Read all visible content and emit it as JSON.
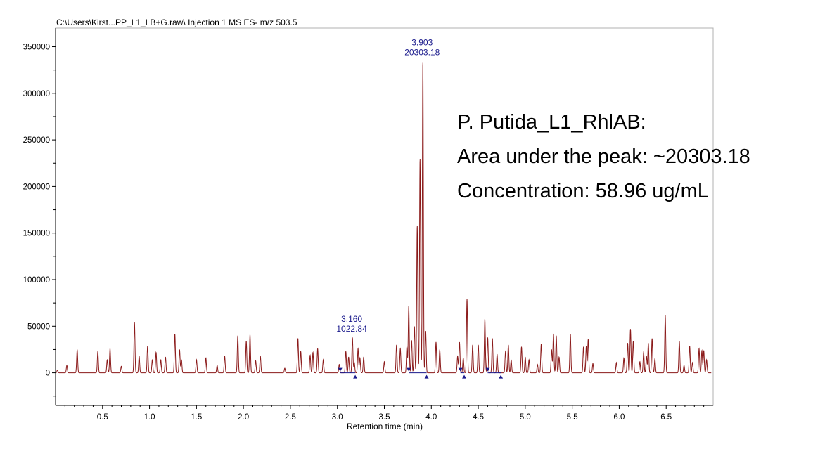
{
  "file_title": "C:\\Users\\Kirst...PP_L1_LB+G.raw\\ Injection 1 MS ES-  m/z 503.5",
  "annotation": {
    "line1": "P. Putida_L1_RhlAB:",
    "line2": "Area under the peak: ~20303.18",
    "line3": "Concentration: 58.96 ug/mL"
  },
  "colors": {
    "trace": "#8b1a1a",
    "peak_label": "#1a1a8c",
    "markers": "#1a1a8c",
    "axis": "#000000"
  },
  "chart_data": {
    "type": "line",
    "title": "",
    "xlabel": "Retention time (min)",
    "ylabel": "",
    "xlim": [
      0.0,
      7.0
    ],
    "ylim": [
      -35000,
      370000
    ],
    "x_ticks": [
      {
        "v": 0.5,
        "label": "0.5"
      },
      {
        "v": 1.0,
        "label": "1.0"
      },
      {
        "v": 1.5,
        "label": "1.5"
      },
      {
        "v": 2.0,
        "label": "2.0"
      },
      {
        "v": 2.5,
        "label": "2.5"
      },
      {
        "v": 3.0,
        "label": "3.0"
      },
      {
        "v": 3.5,
        "label": "3.5"
      },
      {
        "v": 4.0,
        "label": "4.0"
      },
      {
        "v": 4.5,
        "label": "4.5"
      },
      {
        "v": 5.0,
        "label": "5.0"
      },
      {
        "v": 5.5,
        "label": "5.5"
      },
      {
        "v": 6.0,
        "label": "6.0"
      },
      {
        "v": 6.5,
        "label": "6.5"
      }
    ],
    "y_ticks": [
      {
        "v": 0,
        "label": "0"
      },
      {
        "v": 50000,
        "label": "50000"
      },
      {
        "v": 100000,
        "label": "100000"
      },
      {
        "v": 150000,
        "label": "150000"
      },
      {
        "v": 200000,
        "label": "200000"
      },
      {
        "v": 250000,
        "label": "250000"
      },
      {
        "v": 300000,
        "label": "300000"
      },
      {
        "v": 350000,
        "label": "350000"
      }
    ],
    "baseline": 0,
    "peaks": [
      [
        0.02,
        3000
      ],
      [
        0.12,
        8000
      ],
      [
        0.23,
        25000
      ],
      [
        0.45,
        23000
      ],
      [
        0.55,
        14000
      ],
      [
        0.58,
        26000
      ],
      [
        0.7,
        7000
      ],
      [
        0.84,
        54000
      ],
      [
        0.89,
        18000
      ],
      [
        0.98,
        29000
      ],
      [
        1.03,
        14000
      ],
      [
        1.07,
        22000
      ],
      [
        1.12,
        14000
      ],
      [
        1.17,
        17000
      ],
      [
        1.27,
        42000
      ],
      [
        1.32,
        25000
      ],
      [
        1.34,
        14000
      ],
      [
        1.5,
        14000
      ],
      [
        1.6,
        16000
      ],
      [
        1.72,
        8000
      ],
      [
        1.8,
        18000
      ],
      [
        1.94,
        40000
      ],
      [
        2.03,
        34000
      ],
      [
        2.07,
        41000
      ],
      [
        2.13,
        13000
      ],
      [
        2.18,
        18000
      ],
      [
        2.44,
        5000
      ],
      [
        2.58,
        37000
      ],
      [
        2.61,
        23000
      ],
      [
        2.71,
        19000
      ],
      [
        2.74,
        22000
      ],
      [
        2.79,
        26000
      ],
      [
        2.85,
        14000
      ],
      [
        3.02,
        9000
      ],
      [
        3.09,
        23000
      ],
      [
        3.12,
        17000
      ],
      [
        3.16,
        38000
      ],
      [
        3.18,
        11000
      ],
      [
        3.22,
        26000
      ],
      [
        3.24,
        16000
      ],
      [
        3.28,
        17000
      ],
      [
        3.5,
        12000
      ],
      [
        3.63,
        30000
      ],
      [
        3.67,
        26000
      ],
      [
        3.74,
        28000
      ],
      [
        3.76,
        72000
      ],
      [
        3.79,
        35000
      ],
      [
        3.82,
        50000
      ],
      [
        3.85,
        158000
      ],
      [
        3.88,
        230000
      ],
      [
        3.91,
        335000
      ],
      [
        3.94,
        45000
      ],
      [
        4.05,
        33000
      ],
      [
        4.09,
        25000
      ],
      [
        4.28,
        18000
      ],
      [
        4.3,
        33000
      ],
      [
        4.34,
        16000
      ],
      [
        4.38,
        79000
      ],
      [
        4.44,
        30000
      ],
      [
        4.5,
        30000
      ],
      [
        4.57,
        58000
      ],
      [
        4.6,
        38000
      ],
      [
        4.65,
        37000
      ],
      [
        4.7,
        20000
      ],
      [
        4.79,
        23000
      ],
      [
        4.82,
        30000
      ],
      [
        4.85,
        14000
      ],
      [
        4.96,
        28000
      ],
      [
        5.0,
        17000
      ],
      [
        5.04,
        14000
      ],
      [
        5.13,
        9000
      ],
      [
        5.17,
        31000
      ],
      [
        5.28,
        25000
      ],
      [
        5.3,
        42000
      ],
      [
        5.33,
        40000
      ],
      [
        5.36,
        17000
      ],
      [
        5.48,
        42000
      ],
      [
        5.62,
        28000
      ],
      [
        5.65,
        29000
      ],
      [
        5.67,
        36000
      ],
      [
        5.72,
        10000
      ],
      [
        5.97,
        11000
      ],
      [
        6.05,
        16000
      ],
      [
        6.09,
        32000
      ],
      [
        6.12,
        47000
      ],
      [
        6.15,
        34000
      ],
      [
        6.22,
        12000
      ],
      [
        6.26,
        22000
      ],
      [
        6.29,
        18000
      ],
      [
        6.31,
        32000
      ],
      [
        6.35,
        37000
      ],
      [
        6.38,
        15000
      ],
      [
        6.49,
        62000
      ],
      [
        6.64,
        34000
      ],
      [
        6.69,
        8000
      ],
      [
        6.75,
        29000
      ],
      [
        6.78,
        11000
      ],
      [
        6.85,
        26000
      ],
      [
        6.88,
        24000
      ],
      [
        6.9,
        24000
      ],
      [
        6.93,
        14000
      ]
    ],
    "annotated_peaks": [
      {
        "rt": 3.16,
        "rt_label": "3.160",
        "area_label": "1022.84"
      },
      {
        "rt": 3.91,
        "rt_label": "3.903",
        "area_label": "20303.18"
      }
    ],
    "integration_markers": [
      {
        "rt": 3.03,
        "dir": "down"
      },
      {
        "rt": 3.19,
        "dir": "up"
      },
      {
        "rt": 3.76,
        "dir": "down"
      },
      {
        "rt": 3.95,
        "dir": "up"
      },
      {
        "rt": 4.31,
        "dir": "down"
      },
      {
        "rt": 4.35,
        "dir": "up"
      },
      {
        "rt": 4.6,
        "dir": "down"
      },
      {
        "rt": 4.74,
        "dir": "up"
      }
    ]
  }
}
